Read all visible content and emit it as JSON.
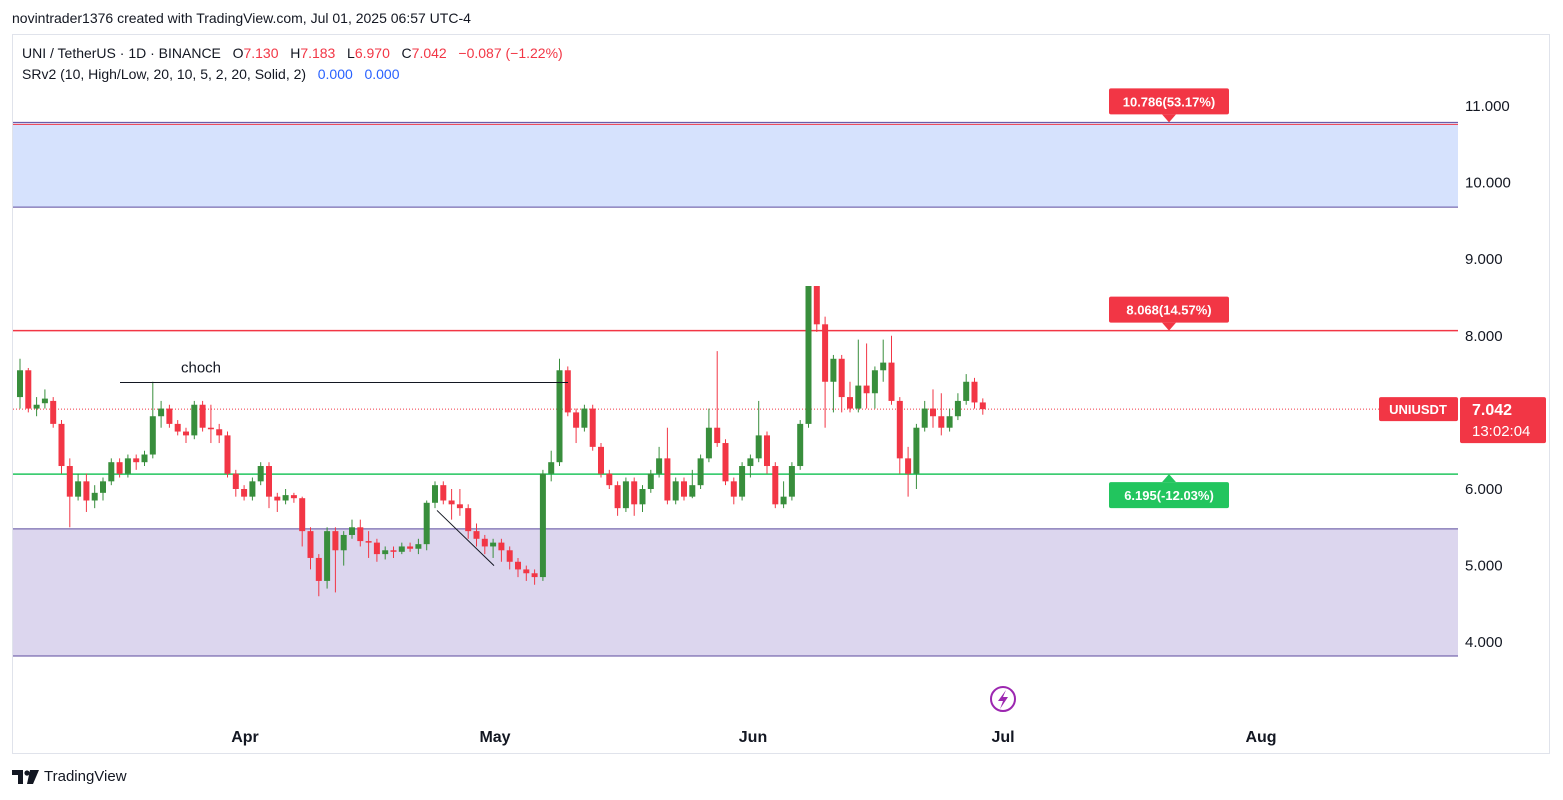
{
  "header": {
    "attribution": "novintrader1376 created with TradingView.com, Jul 01, 2025 06:57 UTC-4"
  },
  "legend": {
    "symbol_line": "UNI / TetherUS · 1D · BINANCE",
    "open_label": "O",
    "open_value": "7.130",
    "high_label": "H",
    "high_value": "7.183",
    "low_label": "L",
    "low_value": "6.970",
    "close_label": "C",
    "close_value": "7.042",
    "change": "−0.087 (−1.22%)",
    "indicator": "SRv2 (10, High/Low, 20, 10, 5, 2, 20, Solid, 2)",
    "indicator_v1": "0.000",
    "indicator_v2": "0.000"
  },
  "footer": {
    "brand": "TradingView"
  },
  "colors": {
    "up": "#388e3c",
    "down": "#f23645",
    "resistance": "#f23645",
    "support": "#22c55e",
    "upper_zone": "#d6e2fd",
    "lower_zone": "#dcd6ee",
    "zone_border": "#5b4a9e",
    "price_tag": "#f23645"
  },
  "chart_data": {
    "type": "candlestick",
    "symbol": "UNIUSDT",
    "y_ticks": [
      "11.000",
      "10.000",
      "9.000",
      "8.000",
      "7.000",
      "6.000",
      "5.000",
      "4.000"
    ],
    "ylim": [
      3.8,
      11.5
    ],
    "x_ticks": [
      "Apr",
      "May",
      "Jun",
      "Jul",
      "Aug"
    ],
    "current_price": "7.042",
    "countdown": "13:02:04",
    "levels": {
      "target_high": "10.786(53.17%)",
      "target_mid": "8.068(14.57%)",
      "target_low": "6.195(-12.03%)"
    },
    "zones": [
      {
        "top": 10.786,
        "bottom": 9.68
      },
      {
        "top": 5.48,
        "bottom": 3.82
      }
    ],
    "resistance_line": 8.068,
    "support_line": 6.195,
    "annotation": "choch",
    "choch_level": 7.39,
    "candles": [
      [
        7.2,
        7.55,
        7.7,
        7.05
      ],
      [
        7.55,
        7.05,
        7.58,
        7.0
      ],
      [
        7.05,
        7.1,
        7.2,
        6.95
      ],
      [
        7.12,
        7.18,
        7.3,
        7.05
      ],
      [
        7.15,
        6.85,
        7.2,
        6.8
      ],
      [
        6.85,
        6.3,
        6.9,
        6.2
      ],
      [
        6.3,
        5.9,
        6.4,
        5.5
      ],
      [
        5.9,
        6.1,
        6.2,
        5.85
      ],
      [
        6.1,
        5.85,
        6.2,
        5.7
      ],
      [
        5.85,
        5.95,
        6.05,
        5.75
      ],
      [
        5.95,
        6.1,
        6.15,
        5.85
      ],
      [
        6.1,
        6.35,
        6.4,
        6.05
      ],
      [
        6.35,
        6.2,
        6.4,
        6.15
      ],
      [
        6.2,
        6.4,
        6.45,
        6.15
      ],
      [
        6.4,
        6.35,
        6.45,
        6.25
      ],
      [
        6.35,
        6.45,
        6.5,
        6.3
      ],
      [
        6.45,
        6.95,
        7.4,
        6.4
      ],
      [
        6.95,
        7.05,
        7.15,
        6.8
      ],
      [
        7.05,
        6.85,
        7.1,
        6.8
      ],
      [
        6.85,
        6.75,
        6.9,
        6.7
      ],
      [
        6.75,
        6.7,
        6.8,
        6.6
      ],
      [
        6.7,
        7.1,
        7.15,
        6.65
      ],
      [
        7.1,
        6.8,
        7.15,
        6.75
      ],
      [
        6.8,
        6.78,
        7.1,
        6.6
      ],
      [
        6.78,
        6.7,
        6.85,
        6.6
      ],
      [
        6.7,
        6.2,
        6.75,
        6.15
      ],
      [
        6.2,
        6.0,
        6.25,
        5.9
      ],
      [
        6.0,
        5.9,
        6.05,
        5.85
      ],
      [
        5.9,
        6.1,
        6.15,
        5.85
      ],
      [
        6.1,
        6.3,
        6.35,
        6.05
      ],
      [
        6.3,
        5.9,
        6.35,
        5.75
      ],
      [
        5.9,
        5.85,
        5.95,
        5.7
      ],
      [
        5.85,
        5.92,
        6.0,
        5.8
      ],
      [
        5.92,
        5.88,
        5.95,
        5.82
      ],
      [
        5.88,
        5.45,
        5.9,
        5.25
      ],
      [
        5.45,
        5.1,
        5.5,
        4.95
      ],
      [
        5.1,
        4.8,
        5.15,
        4.6
      ],
      [
        4.8,
        5.45,
        5.5,
        4.7
      ],
      [
        5.45,
        5.2,
        5.5,
        4.65
      ],
      [
        5.2,
        5.4,
        5.45,
        5.0
      ],
      [
        5.4,
        5.5,
        5.6,
        5.35
      ],
      [
        5.5,
        5.32,
        5.6,
        5.25
      ],
      [
        5.32,
        5.3,
        5.45,
        5.1
      ],
      [
        5.3,
        5.15,
        5.35,
        5.05
      ],
      [
        5.15,
        5.2,
        5.25,
        5.08
      ],
      [
        5.2,
        5.18,
        5.25,
        5.1
      ],
      [
        5.18,
        5.25,
        5.3,
        5.15
      ],
      [
        5.25,
        5.22,
        5.3,
        5.18
      ],
      [
        5.22,
        5.28,
        5.35,
        5.15
      ],
      [
        5.28,
        5.82,
        5.85,
        5.2
      ],
      [
        5.82,
        6.05,
        6.1,
        5.75
      ],
      [
        6.05,
        5.85,
        6.1,
        5.8
      ],
      [
        5.85,
        5.8,
        6.0,
        5.6
      ],
      [
        5.8,
        5.75,
        6.0,
        5.65
      ],
      [
        5.75,
        5.45,
        5.8,
        5.35
      ],
      [
        5.45,
        5.35,
        5.55,
        5.25
      ],
      [
        5.35,
        5.25,
        5.4,
        5.15
      ],
      [
        5.25,
        5.3,
        5.35,
        5.1
      ],
      [
        5.3,
        5.2,
        5.35,
        5.05
      ],
      [
        5.2,
        5.05,
        5.25,
        4.95
      ],
      [
        5.05,
        4.95,
        5.1,
        4.85
      ],
      [
        4.95,
        4.9,
        5.0,
        4.8
      ],
      [
        4.9,
        4.85,
        4.95,
        4.75
      ],
      [
        4.85,
        6.2,
        6.25,
        4.8
      ],
      [
        6.2,
        6.35,
        6.5,
        6.1
      ],
      [
        6.35,
        7.55,
        7.7,
        6.3
      ],
      [
        7.55,
        7.0,
        7.6,
        6.95
      ],
      [
        7.0,
        6.8,
        7.05,
        6.6
      ],
      [
        6.8,
        7.05,
        7.1,
        6.75
      ],
      [
        7.05,
        6.55,
        7.1,
        6.5
      ],
      [
        6.55,
        6.2,
        6.6,
        6.15
      ],
      [
        6.2,
        6.05,
        6.25,
        6.0
      ],
      [
        6.05,
        5.75,
        6.1,
        5.65
      ],
      [
        5.75,
        6.1,
        6.15,
        5.7
      ],
      [
        6.1,
        5.8,
        6.15,
        5.65
      ],
      [
        5.8,
        6.0,
        6.05,
        5.7
      ],
      [
        6.0,
        6.2,
        6.25,
        5.95
      ],
      [
        6.2,
        6.4,
        6.55,
        6.15
      ],
      [
        6.4,
        5.85,
        6.8,
        5.8
      ],
      [
        5.85,
        6.1,
        6.15,
        5.8
      ],
      [
        6.1,
        5.9,
        6.15,
        5.85
      ],
      [
        5.9,
        6.05,
        6.25,
        5.88
      ],
      [
        6.05,
        6.4,
        6.45,
        6.0
      ],
      [
        6.4,
        6.8,
        7.05,
        6.35
      ],
      [
        6.8,
        6.6,
        7.8,
        6.55
      ],
      [
        6.6,
        6.1,
        6.65,
        6.05
      ],
      [
        6.1,
        5.9,
        6.15,
        5.8
      ],
      [
        5.9,
        6.3,
        6.35,
        5.85
      ],
      [
        6.3,
        6.4,
        6.45,
        6.15
      ],
      [
        6.4,
        6.7,
        7.15,
        6.35
      ],
      [
        6.7,
        6.3,
        6.75,
        6.2
      ],
      [
        6.3,
        5.8,
        6.35,
        5.75
      ],
      [
        5.8,
        5.9,
        6.1,
        5.75
      ],
      [
        5.9,
        6.3,
        6.35,
        5.85
      ],
      [
        6.3,
        6.85,
        6.9,
        6.25
      ],
      [
        6.85,
        8.65,
        8.65,
        6.8
      ],
      [
        8.65,
        8.15,
        8.65,
        8.05
      ],
      [
        8.15,
        7.4,
        8.25,
        6.8
      ],
      [
        7.4,
        7.7,
        7.75,
        7.0
      ],
      [
        7.7,
        7.2,
        7.75,
        7.0
      ],
      [
        7.2,
        7.05,
        7.4,
        7.0
      ],
      [
        7.05,
        7.35,
        7.95,
        7.0
      ],
      [
        7.35,
        7.25,
        7.9,
        7.05
      ],
      [
        7.25,
        7.55,
        7.6,
        7.05
      ],
      [
        7.55,
        7.65,
        7.95,
        7.4
      ],
      [
        7.65,
        7.15,
        8.0,
        7.1
      ],
      [
        7.15,
        6.4,
        7.2,
        6.2
      ],
      [
        6.4,
        6.2,
        6.55,
        5.9
      ],
      [
        6.2,
        6.8,
        6.85,
        6.0
      ],
      [
        6.8,
        7.05,
        7.15,
        6.75
      ],
      [
        7.05,
        6.95,
        7.3,
        6.8
      ],
      [
        6.95,
        6.8,
        7.25,
        6.7
      ],
      [
        6.8,
        6.95,
        7.05,
        6.75
      ],
      [
        6.95,
        7.15,
        7.25,
        6.9
      ],
      [
        7.15,
        7.4,
        7.5,
        7.1
      ],
      [
        7.4,
        7.13,
        7.45,
        7.05
      ],
      [
        7.13,
        7.042,
        7.183,
        6.97
      ]
    ]
  }
}
